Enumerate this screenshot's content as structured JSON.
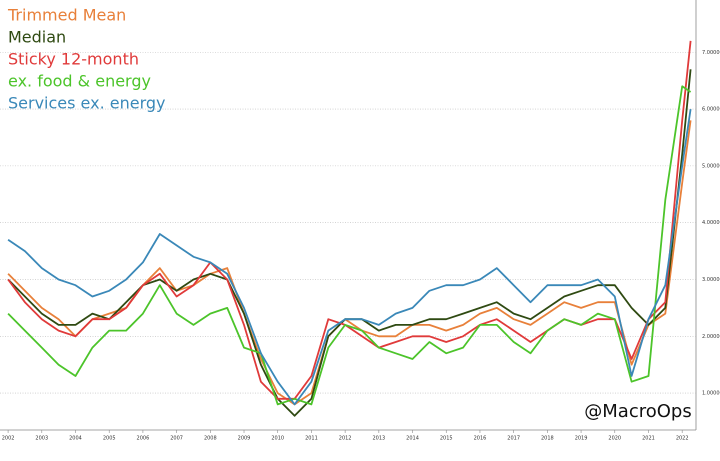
{
  "chart_data": {
    "type": "line",
    "annotation": "@MacroOps",
    "legend": "upper left",
    "grid": true,
    "x": [
      2002,
      2002.5,
      2003,
      2003.5,
      2004,
      2004.5,
      2005,
      2005.5,
      2006,
      2006.5,
      2007,
      2007.5,
      2008,
      2008.5,
      2009,
      2009.5,
      2010,
      2010.5,
      2011,
      2011.5,
      2012,
      2012.5,
      2013,
      2013.5,
      2014,
      2014.5,
      2015,
      2015.5,
      2016,
      2016.5,
      2017,
      2017.5,
      2018,
      2018.5,
      2019,
      2019.5,
      2020,
      2020.5,
      2021,
      2021.5,
      2022,
      2022.25
    ],
    "xlim": [
      2001.76,
      2022.41
    ],
    "xticks": [
      2002,
      2003,
      2004,
      2005,
      2006,
      2007,
      2008,
      2009,
      2010,
      2011,
      2012,
      2013,
      2014,
      2015,
      2016,
      2017,
      2018,
      2019,
      2020,
      2021,
      2022
    ],
    "ylim": [
      0.35,
      7.92
    ],
    "yticks": [
      {
        "value": 1,
        "label": "1.00000"
      },
      {
        "value": 2,
        "label": "2.00000"
      },
      {
        "value": 3,
        "label": "3.00000"
      },
      {
        "value": 4,
        "label": "4.00000"
      },
      {
        "value": 5,
        "label": "5.00000"
      },
      {
        "value": 6,
        "label": "6.00000"
      },
      {
        "value": 7,
        "label": "7.00000"
      }
    ],
    "series": [
      {
        "name": "Trimmed Mean",
        "color": "#e8803a",
        "values": [
          3.1,
          2.8,
          2.5,
          2.3,
          2.0,
          2.3,
          2.4,
          2.5,
          2.9,
          3.2,
          2.8,
          2.9,
          3.1,
          3.2,
          2.4,
          1.6,
          1.0,
          0.8,
          1.0,
          2.0,
          2.3,
          2.1,
          2.0,
          2.0,
          2.2,
          2.2,
          2.1,
          2.2,
          2.4,
          2.5,
          2.3,
          2.2,
          2.4,
          2.6,
          2.5,
          2.6,
          2.6,
          1.5,
          2.2,
          2.4,
          4.7,
          5.8
        ]
      },
      {
        "name": "Median",
        "color": "#2f4a12",
        "values": [
          3.0,
          2.7,
          2.4,
          2.2,
          2.2,
          2.4,
          2.3,
          2.6,
          2.9,
          3.0,
          2.8,
          3.0,
          3.1,
          3.0,
          2.4,
          1.5,
          0.9,
          0.6,
          0.9,
          2.0,
          2.3,
          2.3,
          2.1,
          2.2,
          2.2,
          2.3,
          2.3,
          2.4,
          2.5,
          2.6,
          2.4,
          2.3,
          2.5,
          2.7,
          2.8,
          2.9,
          2.9,
          2.5,
          2.2,
          2.5,
          5.2,
          6.7
        ]
      },
      {
        "name": "Sticky 12-month",
        "color": "#e03a3a",
        "values": [
          3.0,
          2.6,
          2.3,
          2.1,
          2.0,
          2.3,
          2.3,
          2.5,
          2.9,
          3.1,
          2.7,
          2.9,
          3.3,
          3.0,
          2.2,
          1.2,
          0.9,
          0.9,
          1.3,
          2.3,
          2.2,
          2.0,
          1.8,
          1.9,
          2.0,
          2.0,
          1.9,
          2.0,
          2.2,
          2.3,
          2.1,
          1.9,
          2.1,
          2.3,
          2.2,
          2.3,
          2.3,
          1.6,
          2.3,
          2.6,
          5.8,
          7.2
        ]
      },
      {
        "name": "ex. food & energy",
        "color": "#4cc42a",
        "values": [
          2.4,
          2.1,
          1.8,
          1.5,
          1.3,
          1.8,
          2.1,
          2.1,
          2.4,
          2.9,
          2.4,
          2.2,
          2.4,
          2.5,
          1.8,
          1.7,
          0.8,
          0.9,
          0.8,
          1.8,
          2.2,
          2.1,
          1.8,
          1.7,
          1.6,
          1.9,
          1.7,
          1.8,
          2.2,
          2.2,
          1.9,
          1.7,
          2.1,
          2.3,
          2.2,
          2.4,
          2.3,
          1.2,
          1.3,
          4.4,
          6.4,
          6.3
        ]
      },
      {
        "name": "Services ex. energy",
        "color": "#3a88b8",
        "values": [
          3.7,
          3.5,
          3.2,
          3.0,
          2.9,
          2.7,
          2.8,
          3.0,
          3.3,
          3.8,
          3.6,
          3.4,
          3.3,
          3.1,
          2.5,
          1.7,
          1.2,
          0.8,
          1.2,
          2.1,
          2.3,
          2.3,
          2.2,
          2.4,
          2.5,
          2.8,
          2.9,
          2.9,
          3.0,
          3.2,
          2.9,
          2.6,
          2.9,
          2.9,
          2.9,
          3.0,
          2.7,
          1.3,
          2.3,
          2.9,
          5.0,
          6.0
        ]
      }
    ]
  }
}
